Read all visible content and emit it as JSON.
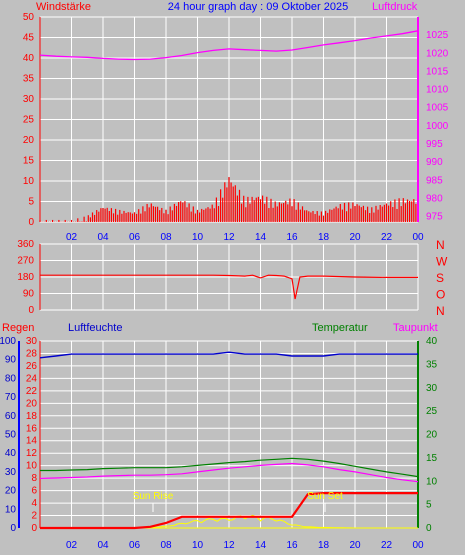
{
  "header": {
    "title": "24 hour graph day : 09 Oktober 2025",
    "left_label": "Windstärke",
    "right_label": "Luftdruck"
  },
  "lower_header": {
    "rain": "Regen",
    "humidity": "Luftfeuchte",
    "temperature": "Temperatur",
    "dewpoint": "Taupunkt"
  },
  "annotations": {
    "sun_rise": "Sun Rise",
    "sun_set": "Sun Set"
  },
  "colors": {
    "wind": "#ff0000",
    "gust": "#0000ff",
    "wind_avg": "#008000",
    "pressure": "#ff00ff",
    "direction": "#ff0000",
    "humidity": "#0000cc",
    "temperature": "#008000",
    "dewpoint": "#ff00ff",
    "rain": "#ff0000",
    "solar": "#ffff00",
    "background": "#c0c0c0",
    "grid": "#ffffff"
  },
  "x_ticks": [
    "02",
    "04",
    "06",
    "08",
    "10",
    "12",
    "14",
    "16",
    "18",
    "20",
    "22",
    "00"
  ],
  "chart_data": [
    {
      "type": "line",
      "name_left": "Windstärke",
      "name_right": "Luftdruck",
      "x_hours": [
        0,
        1,
        2,
        3,
        4,
        5,
        6,
        7,
        8,
        9,
        10,
        11,
        12,
        13,
        14,
        15,
        16,
        17,
        18,
        19,
        20,
        21,
        22,
        23,
        24
      ],
      "series": [
        {
          "name": "Windstärke",
          "axis": "left",
          "style": "bars",
          "values": [
            0.5,
            0.5,
            0.5,
            1.5,
            4,
            3,
            2.5,
            5,
            3,
            6,
            3,
            4.5,
            12,
            6,
            7,
            5,
            6,
            3,
            2.5,
            4.5,
            5,
            3.5,
            5,
            6,
            6
          ]
        },
        {
          "name": "Luftdruck",
          "axis": "right",
          "values": [
            1019.5,
            1019.2,
            1019,
            1018.9,
            1018.6,
            1018.4,
            1018.3,
            1018.4,
            1018.8,
            1019.4,
            1020.2,
            1020.8,
            1021.2,
            1021,
            1020.8,
            1020.6,
            1020.9,
            1021.6,
            1022.3,
            1022.9,
            1023.5,
            1024.2,
            1024.8,
            1025.4,
            1026.2
          ]
        }
      ],
      "y_left_ticks": [
        0,
        5,
        10,
        15,
        20,
        25,
        30,
        35,
        40,
        45,
        50
      ],
      "y_right_ticks": [
        975,
        980,
        985,
        990,
        995,
        1000,
        1005,
        1010,
        1015,
        1020,
        1025
      ],
      "ylim_left": [
        0,
        50
      ],
      "ylim_right": [
        973.5,
        1030
      ]
    },
    {
      "type": "line",
      "name_right_labels": [
        "N",
        "W",
        "S",
        "O",
        "N"
      ],
      "x_hours": [
        0,
        2,
        4,
        6,
        8,
        10,
        11,
        12,
        13,
        13.5,
        14,
        14.5,
        15,
        15.5,
        16,
        16.2,
        16.5,
        17,
        18,
        20,
        22,
        24
      ],
      "series": [
        {
          "name": "Windrichtung",
          "values": [
            190,
            190,
            190,
            190,
            190,
            190,
            190,
            188,
            185,
            190,
            175,
            190,
            188,
            185,
            170,
            60,
            180,
            185,
            185,
            180,
            178,
            178
          ]
        }
      ],
      "y_ticks": [
        0,
        90,
        180,
        270,
        360
      ],
      "ylim": [
        0,
        360
      ]
    },
    {
      "type": "line",
      "x_hours": [
        0,
        1,
        2,
        3,
        4,
        5,
        6,
        7,
        8,
        9,
        10,
        11,
        12,
        13,
        14,
        15,
        16,
        17,
        18,
        19,
        20,
        21,
        22,
        23,
        24
      ],
      "series": [
        {
          "name": "Luftfeuchte",
          "axis": "humidity",
          "values": [
            91,
            92,
            93,
            93,
            93,
            93,
            93,
            93,
            93,
            93,
            93,
            93,
            94,
            93,
            93,
            93,
            92,
            92,
            92,
            93,
            93,
            93,
            93,
            93,
            93
          ]
        },
        {
          "name": "Temperatur",
          "axis": "temperature",
          "values": [
            12.3,
            12.3,
            12.4,
            12.5,
            12.7,
            12.8,
            12.9,
            12.9,
            12.9,
            13.1,
            13.4,
            13.7,
            14.0,
            14.2,
            14.5,
            14.7,
            14.9,
            14.7,
            14.3,
            13.8,
            13.2,
            12.6,
            12.0,
            11.5,
            11.0
          ]
        },
        {
          "name": "Taupunkt",
          "axis": "temperature",
          "values": [
            10.6,
            10.7,
            10.8,
            10.9,
            11.1,
            11.2,
            11.3,
            11.3,
            11.4,
            11.6,
            12.0,
            12.4,
            12.8,
            13.1,
            13.4,
            13.6,
            13.8,
            13.5,
            13.1,
            12.5,
            12.0,
            11.4,
            10.8,
            10.3,
            9.9
          ]
        },
        {
          "name": "Regen",
          "axis": "rain_mm",
          "style": "step",
          "values": [
            0,
            0,
            0,
            0,
            0,
            0,
            0,
            0.2,
            0.8,
            1.8,
            1.8,
            1.8,
            1.8,
            1.8,
            1.8,
            1.8,
            1.8,
            5.4,
            5.6,
            5.6,
            5.6,
            5.6,
            5.6,
            5.6,
            5.6
          ]
        },
        {
          "name": "Solar",
          "axis": "rain_mm",
          "style": "fill",
          "values": [
            0,
            0,
            0,
            0,
            0,
            0,
            0,
            0.1,
            0.3,
            0.8,
            1.3,
            1.6,
            1.6,
            2.2,
            1.9,
            1.6,
            0.6,
            0.2,
            0.1,
            0.05,
            0,
            0,
            0,
            0,
            0
          ]
        }
      ],
      "y_humidity_ticks": [
        0,
        10,
        20,
        30,
        40,
        50,
        60,
        70,
        80,
        90,
        100
      ],
      "y_rain_ticks": [
        0,
        2,
        4,
        6,
        8,
        10,
        12,
        14,
        16,
        18,
        20,
        22,
        24,
        26,
        28,
        30
      ],
      "y_temperature_ticks": [
        0,
        5,
        10,
        15,
        20,
        25,
        30,
        35,
        40
      ],
      "ylim_humidity": [
        0,
        100
      ],
      "ylim_rain": [
        0,
        30
      ],
      "ylim_temperature": [
        0,
        40
      ]
    }
  ]
}
